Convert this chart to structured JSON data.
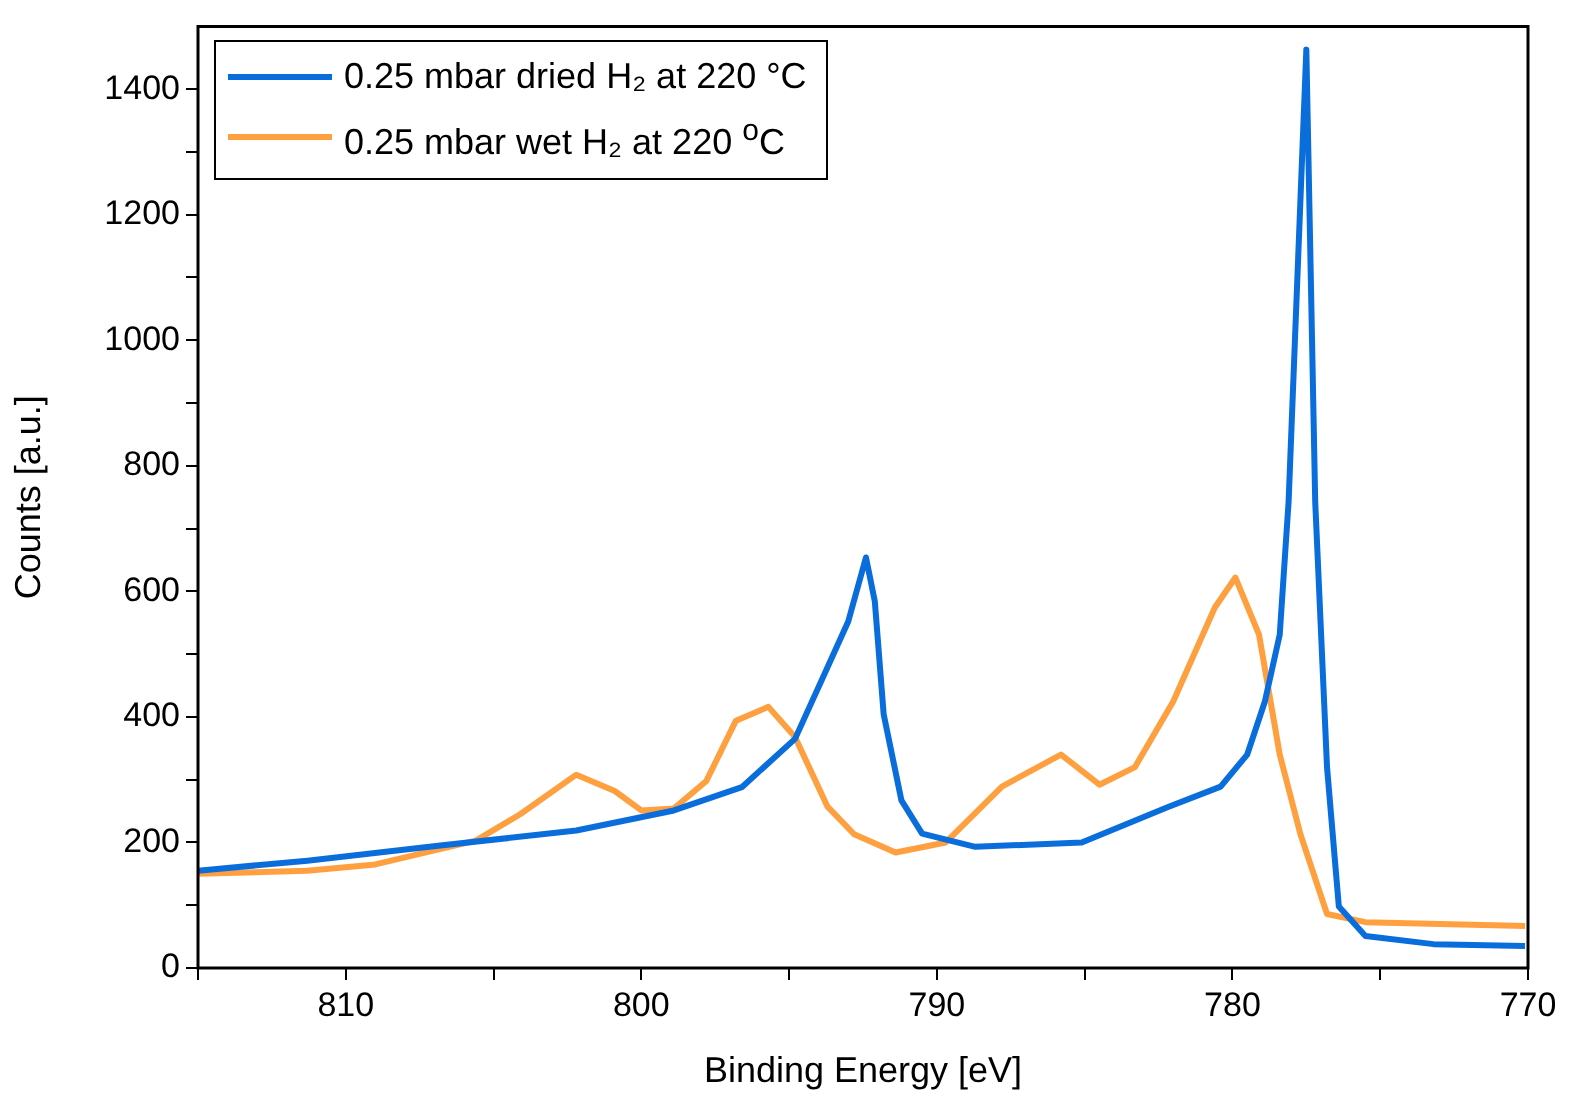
{
  "chart_data": {
    "type": "line",
    "xlabel": "Binding Energy [eV]",
    "ylabel": "Counts [a.u.]",
    "xlim": [
      815,
      770
    ],
    "xticks": [
      {
        "value": 815,
        "label": null
      },
      810,
      {
        "value": 805,
        "label": null
      },
      800,
      {
        "value": 795,
        "label": null
      },
      790,
      {
        "value": 785,
        "label": null
      },
      780,
      {
        "value": 775,
        "label": null
      },
      770
    ],
    "ylim": [
      0,
      1500
    ],
    "yticks": [
      0,
      {
        "value": 100,
        "label": null
      },
      200,
      {
        "value": 300,
        "label": null
      },
      400,
      {
        "value": 500,
        "label": null
      },
      600,
      {
        "value": 700,
        "label": null
      },
      800,
      {
        "value": 900,
        "label": null
      },
      1000,
      {
        "value": 1100,
        "label": null
      },
      1200,
      {
        "value": 1300,
        "label": null
      },
      1400
    ],
    "grid": false,
    "legend": "top left",
    "marker": "none",
    "line_style": "solid",
    "series": [
      {
        "name": "0.25 mbar dried H₂ at 220 °C",
        "color": "#0a6ddc",
        "x": [
          815,
          811.3,
          806.8,
          802.2,
          798.9,
          796.6,
          794.8,
          793.7,
          793.0,
          792.4,
          792.1,
          791.8,
          791.2,
          790.5,
          788.7,
          785.1,
          782.2,
          780.4,
          779.5,
          778.9,
          778.4,
          778.1,
          777.5,
          777.2,
          776.8,
          776.4,
          775.5,
          773.2,
          770.1
        ],
        "values": [
          155,
          171,
          195,
          219,
          251,
          288,
          365,
          479,
          552,
          654,
          584,
          404,
          267,
          214,
          193,
          200,
          256,
          289,
          340,
          425,
          531,
          743,
          1463,
          743,
          320,
          98,
          51,
          38,
          35
        ]
      },
      {
        "name": "0.25 mbar wet H₂ at 220 $^{o}$C",
        "color": "#ffa040",
        "x": [
          815,
          811.3,
          809,
          805.6,
          804.1,
          802.2,
          800.9,
          800,
          798.9,
          797.8,
          796.8,
          795.7,
          794.8,
          793.7,
          792.8,
          791.4,
          789.7,
          787.8,
          785.8,
          784.5,
          783.3,
          782.0,
          780.6,
          779.9,
          779.1,
          778.4,
          777.7,
          776.8,
          775.5,
          770.1
        ],
        "values": [
          150,
          155,
          165,
          203,
          245,
          308,
          282,
          251,
          254,
          298,
          394,
          416,
          368,
          257,
          213,
          184,
          200,
          289,
          340,
          292,
          320,
          425,
          574,
          622,
          531,
          340,
          213,
          86,
          73,
          67
        ]
      }
    ]
  }
}
